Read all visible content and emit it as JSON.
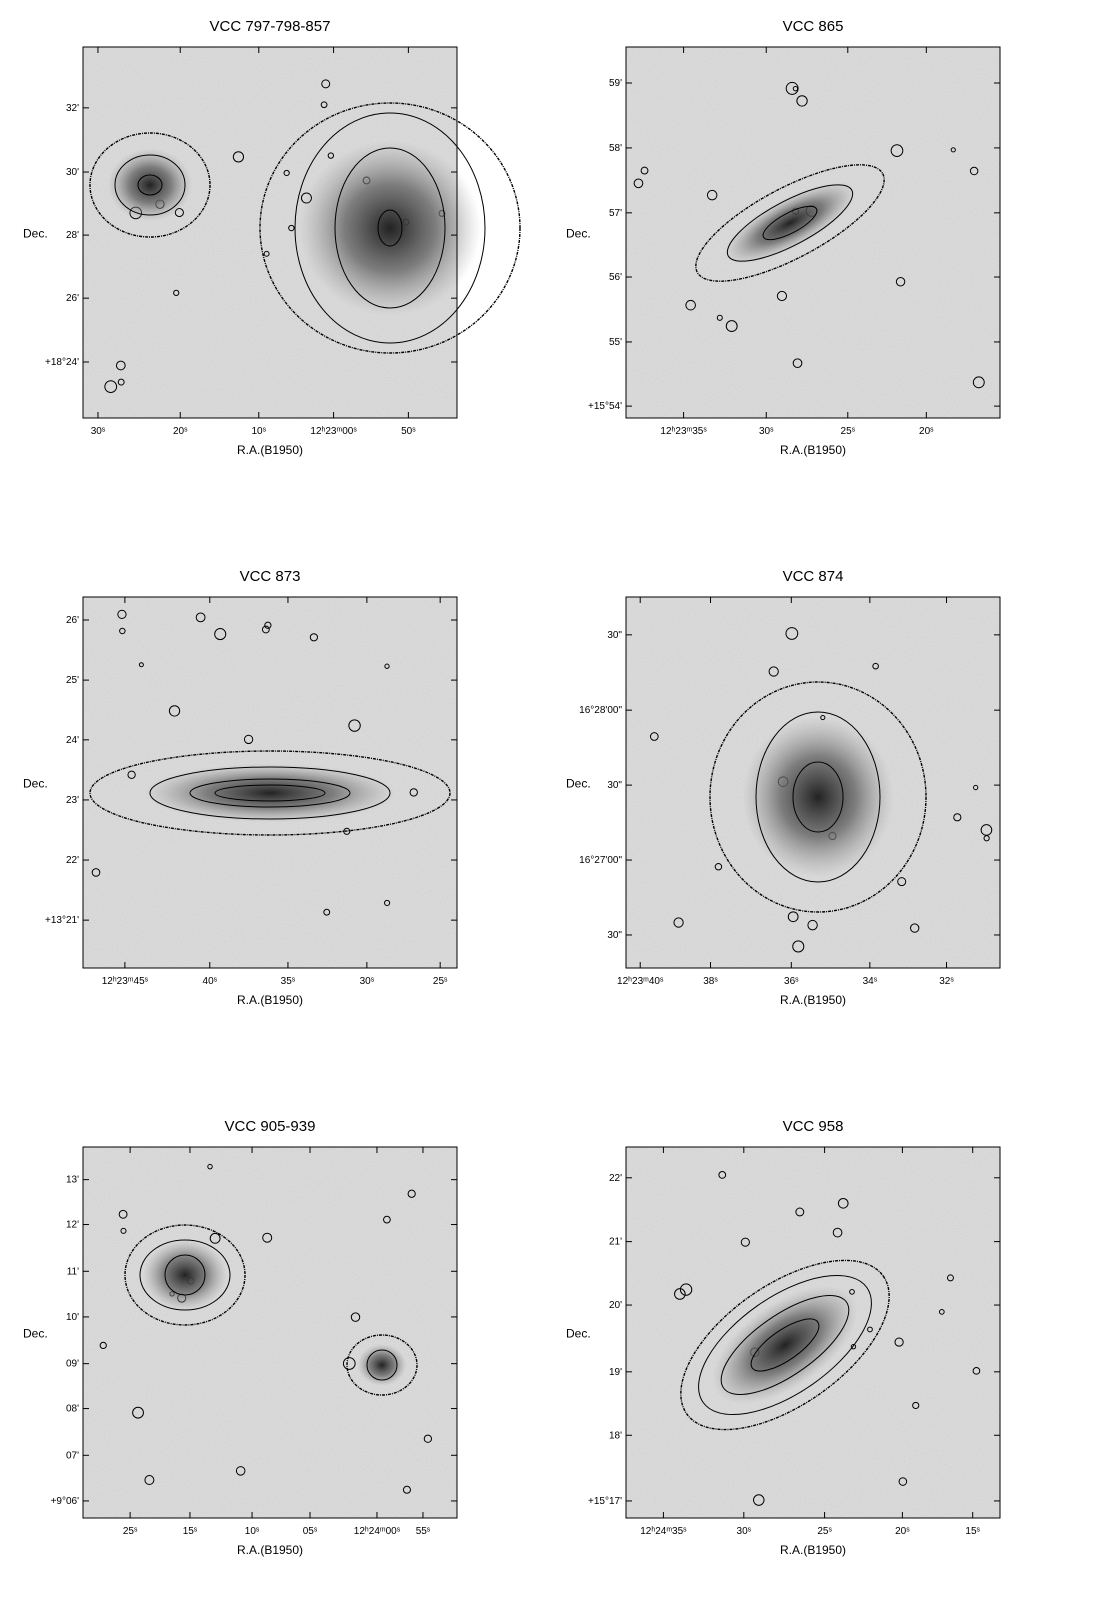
{
  "panels": [
    {
      "title": "VCC 797-798-857",
      "x_label": "R.A.(B1950)",
      "y_label": "Dec.",
      "yticks": [
        "32'",
        "30'",
        "28'",
        "26'",
        "+18°24'"
      ],
      "xticks": [
        "30ˢ",
        "20ˢ",
        "10ˢ",
        "12ʰ23ᵐ00ˢ",
        "50ˢ"
      ]
    },
    {
      "title": "VCC 865",
      "x_label": "R.A.(B1950)",
      "y_label": "Dec.",
      "yticks": [
        "59'",
        "58'",
        "57'",
        "56'",
        "55'",
        "+15°54'"
      ],
      "xticks": [
        "12ʰ23ᵐ35ˢ",
        "30ˢ",
        "25ˢ",
        "20ˢ"
      ]
    },
    {
      "title": "VCC 873",
      "x_label": "R.A.(B1950)",
      "y_label": "Dec.",
      "yticks": [
        "26'",
        "25'",
        "24'",
        "23'",
        "22'",
        "+13°21'"
      ],
      "xticks": [
        "12ʰ23ᵐ45ˢ",
        "40ˢ",
        "35ˢ",
        "30ˢ",
        "25ˢ"
      ]
    },
    {
      "title": "VCC 874",
      "x_label": "R.A.(B1950)",
      "y_label": "Dec.",
      "yticks": [
        "30\"",
        "16°28'00\"",
        "30\"",
        "16°27'00\"",
        "30\""
      ],
      "xticks": [
        "12ʰ23ᵐ40ˢ",
        "38ˢ",
        "36ˢ",
        "34ˢ",
        "32ˢ"
      ]
    },
    {
      "title": "VCC 905-939",
      "x_label": "R.A.(B1950)",
      "y_label": "Dec.",
      "yticks": [
        "13'",
        "12'",
        "11'",
        "10'",
        "09'",
        "08'",
        "07'",
        "+9°06'"
      ],
      "xticks": [
        "25ˢ",
        "15ˢ",
        "10ˢ",
        "05ˢ",
        "12ʰ24ᵐ00ˢ",
        "55ˢ"
      ]
    },
    {
      "title": "VCC 958",
      "x_label": "R.A.(B1950)",
      "y_label": "Dec.",
      "yticks": [
        "22'",
        "21'",
        "20'",
        "19'",
        "18'",
        "+15°17'"
      ],
      "xticks": [
        "12ʰ24ᵐ35ˢ",
        "30ˢ",
        "25ˢ",
        "20ˢ",
        "15ˢ"
      ]
    }
  ]
}
